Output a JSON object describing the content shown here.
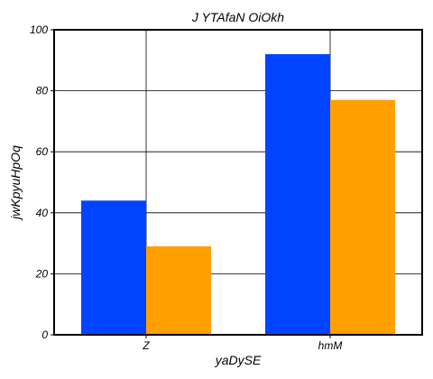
{
  "chart_data": {
    "type": "bar",
    "title": "J YTAfaN OiOkh",
    "xlabel": "yaDySE",
    "ylabel": "jwKpyuHpOq",
    "categories": [
      "Z",
      "hmM"
    ],
    "series": [
      {
        "values": [
          44,
          92
        ],
        "color": "#0044ff"
      },
      {
        "values": [
          29,
          77
        ],
        "color": "#ff9f00"
      }
    ],
    "ylim": [
      0,
      100
    ],
    "yticks": [
      0,
      20,
      40,
      60,
      80,
      100
    ],
    "grid": true,
    "legend": "none"
  }
}
